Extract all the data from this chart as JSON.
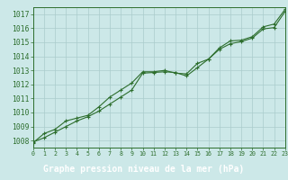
{
  "title": "Graphe pression niveau de la mer (hPa)",
  "x_values": [
    0,
    1,
    2,
    3,
    4,
    5,
    6,
    7,
    8,
    9,
    10,
    11,
    12,
    13,
    14,
    15,
    16,
    17,
    18,
    19,
    20,
    21,
    22,
    23
  ],
  "y_line1": [
    1007.9,
    1008.2,
    1008.6,
    1009.0,
    1009.4,
    1009.7,
    1010.1,
    1010.6,
    1011.1,
    1011.6,
    1012.8,
    1012.85,
    1012.9,
    1012.85,
    1012.6,
    1013.2,
    1013.8,
    1014.5,
    1014.9,
    1015.05,
    1015.3,
    1015.95,
    1016.05,
    1017.2
  ],
  "y_line2": [
    1007.85,
    1008.5,
    1008.8,
    1009.4,
    1009.6,
    1009.8,
    1010.4,
    1011.1,
    1011.6,
    1012.1,
    1012.9,
    1012.9,
    1013.0,
    1012.8,
    1012.75,
    1013.5,
    1013.8,
    1014.6,
    1015.1,
    1015.15,
    1015.4,
    1016.1,
    1016.3,
    1017.35
  ],
  "ylim": [
    1007.5,
    1017.5
  ],
  "yticks": [
    1008,
    1009,
    1010,
    1011,
    1012,
    1013,
    1014,
    1015,
    1016,
    1017
  ],
  "xlim": [
    0,
    23
  ],
  "xticks": [
    0,
    1,
    2,
    3,
    4,
    5,
    6,
    7,
    8,
    9,
    10,
    11,
    12,
    13,
    14,
    15,
    16,
    17,
    18,
    19,
    20,
    21,
    22,
    23
  ],
  "line_color": "#2d6e2d",
  "grid_color": "#aacccc",
  "bg_color": "#cce8e8",
  "title_bg": "#3d8a3d",
  "tick_color": "#2d6e2d"
}
